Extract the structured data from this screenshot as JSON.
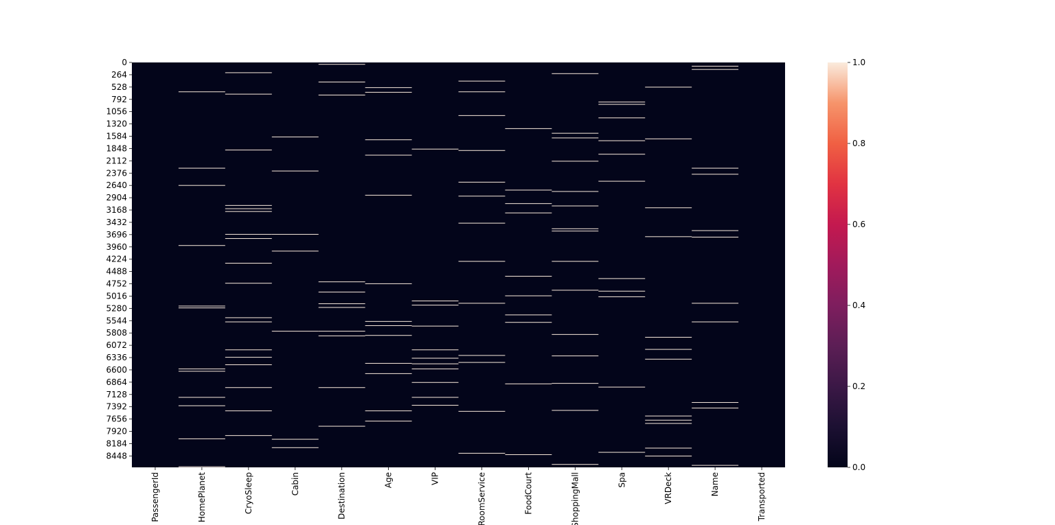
{
  "chart_data": {
    "type": "heatmap",
    "title": "",
    "xlabel": "",
    "ylabel": "",
    "columns": [
      "PassengerId",
      "HomePlanet",
      "CryoSleep",
      "Cabin",
      "Destination",
      "Age",
      "VIP",
      "RoomService",
      "FoodCourt",
      "ShoppingMall",
      "Spa",
      "VRDeck",
      "Name",
      "Transported"
    ],
    "y_ticks": [
      0,
      264,
      528,
      792,
      1056,
      1320,
      1584,
      1848,
      2112,
      2376,
      2640,
      2904,
      3168,
      3432,
      3696,
      3960,
      4224,
      4488,
      4752,
      5016,
      5280,
      5544,
      5808,
      6072,
      6336,
      6600,
      6864,
      7128,
      7392,
      7656,
      7920,
      8184,
      8448
    ],
    "n_rows": 8693,
    "value_range": [
      0.0,
      1.0
    ],
    "colormap": "rocket",
    "colors": {
      "background": "#03051a",
      "line": "#faebdd"
    },
    "colorbar": {
      "ticks": [
        "0.0",
        "0.2",
        "0.4",
        "0.6",
        "0.8",
        "1.0"
      ]
    },
    "missing_rows": {
      "PassengerId": [],
      "HomePlanet": [
        630,
        2270,
        2640,
        3930,
        5230,
        5270,
        6580,
        6630,
        7190,
        7370,
        8080,
        8680
      ],
      "CryoSleep": [
        220,
        680,
        1880,
        3070,
        3140,
        3200,
        3690,
        3780,
        4310,
        4740,
        5480,
        5570,
        6170,
        6330,
        6490,
        6980,
        7480,
        8010
      ],
      "Cabin": [
        1600,
        2330,
        3690,
        4050,
        5770,
        8090,
        8270
      ],
      "Destination": [
        40,
        420,
        700,
        4710,
        4930,
        5180,
        5260,
        5770,
        5870,
        6980,
        7810
      ],
      "Age": [
        540,
        640,
        1660,
        1990,
        2850,
        4750,
        5560,
        5650,
        5860,
        6460,
        6680,
        7480,
        7700
      ],
      "VIP": [
        1860,
        5120,
        5210,
        5660,
        6170,
        6350,
        6470,
        6580,
        6870,
        7190,
        7360
      ],
      "RoomService": [
        400,
        630,
        1140,
        1890,
        2570,
        2870,
        3450,
        4270,
        5170,
        6290,
        6440,
        7490,
        8390
      ],
      "FoodCourt": [
        1420,
        2740,
        3030,
        3230,
        4590,
        5010,
        5420,
        5580,
        6900,
        8420
      ],
      "ShoppingMall": [
        240,
        1520,
        1620,
        2120,
        2770,
        3080,
        3570,
        3620,
        4270,
        4890,
        5840,
        6300,
        6890,
        7470,
        8630
      ],
      "Spa": [
        850,
        900,
        1190,
        1680,
        1970,
        2550,
        4640,
        4910,
        5030,
        6970,
        8370
      ],
      "VRDeck": [
        530,
        1640,
        3120,
        3740,
        5900,
        6160,
        6370,
        7590,
        7680,
        7750,
        8280,
        8450
      ],
      "Name": [
        80,
        150,
        2270,
        2400,
        3610,
        3750,
        5170,
        5570,
        7300,
        7420,
        8650
      ],
      "Transported": []
    }
  }
}
